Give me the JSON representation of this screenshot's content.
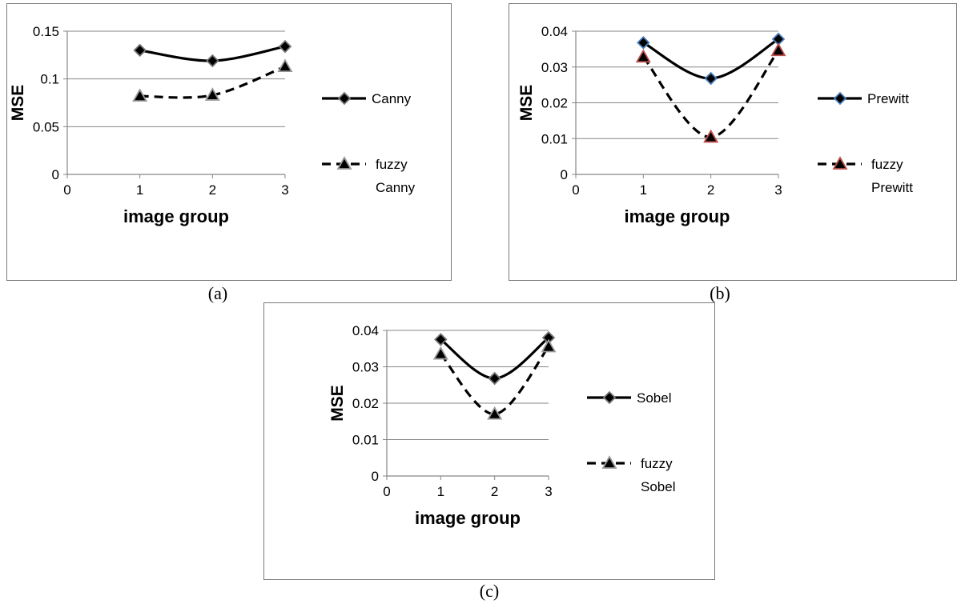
{
  "chart_data": [
    {
      "type": "line",
      "caption": "(a)",
      "xlabel": "image group",
      "ylabel": "MSE",
      "xlim": [
        0,
        3
      ],
      "ylim": [
        0,
        0.15
      ],
      "xticks": [
        "0",
        "1",
        "2",
        "3"
      ],
      "yticks": [
        "0",
        "0.05",
        "0.1",
        "0.15"
      ],
      "grid": "horizontal",
      "legend": "right",
      "x": [
        1,
        2,
        3
      ],
      "series": [
        {
          "name": "Canny",
          "values": [
            0.13,
            0.119,
            0.134
          ],
          "style": "solid",
          "marker": "diamond",
          "marker_stroke": "#777777"
        },
        {
          "name": "fuzzy Canny",
          "legend_lines": [
            "fuzzy",
            "Canny"
          ],
          "values": [
            0.082,
            0.083,
            0.113
          ],
          "style": "dashed",
          "marker": "triangle",
          "marker_stroke": "#9a9a9a"
        }
      ]
    },
    {
      "type": "line",
      "caption": "(b)",
      "xlabel": "image group",
      "ylabel": "MSE",
      "xlim": [
        0,
        3
      ],
      "ylim": [
        0,
        0.04
      ],
      "xticks": [
        "0",
        "1",
        "2",
        "3"
      ],
      "yticks": [
        "0",
        "0.01",
        "0.02",
        "0.03",
        "0.04"
      ],
      "grid": "horizontal",
      "legend": "right",
      "x": [
        1,
        2,
        3
      ],
      "series": [
        {
          "name": "Prewitt",
          "values": [
            0.0368,
            0.0268,
            0.0378
          ],
          "style": "solid",
          "marker": "diamond",
          "marker_stroke": "#4a7ebb"
        },
        {
          "name": "fuzzy Prewitt",
          "legend_lines": [
            "fuzzy",
            "Prewitt"
          ],
          "values": [
            0.0328,
            0.0104,
            0.0346
          ],
          "style": "dashed",
          "marker": "triangle",
          "marker_stroke": "#c0504d"
        }
      ]
    },
    {
      "type": "line",
      "caption": "(c)",
      "xlabel": "image group",
      "ylabel": "MSE",
      "xlim": [
        0,
        3
      ],
      "ylim": [
        0,
        0.04
      ],
      "xticks": [
        "0",
        "1",
        "2",
        "3"
      ],
      "yticks": [
        "0",
        "0.01",
        "0.02",
        "0.03",
        "0.04"
      ],
      "grid": "horizontal",
      "legend": "right",
      "x": [
        1,
        2,
        3
      ],
      "series": [
        {
          "name": "Sobel",
          "values": [
            0.0375,
            0.0268,
            0.038
          ],
          "style": "solid",
          "marker": "diamond",
          "marker_stroke": "#777777"
        },
        {
          "name": "fuzzy Sobel",
          "legend_lines": [
            "fuzzy",
            "Sobel"
          ],
          "values": [
            0.0335,
            0.017,
            0.0355
          ],
          "style": "dashed",
          "marker": "triangle",
          "marker_stroke": "#9a9a9a"
        }
      ]
    }
  ]
}
